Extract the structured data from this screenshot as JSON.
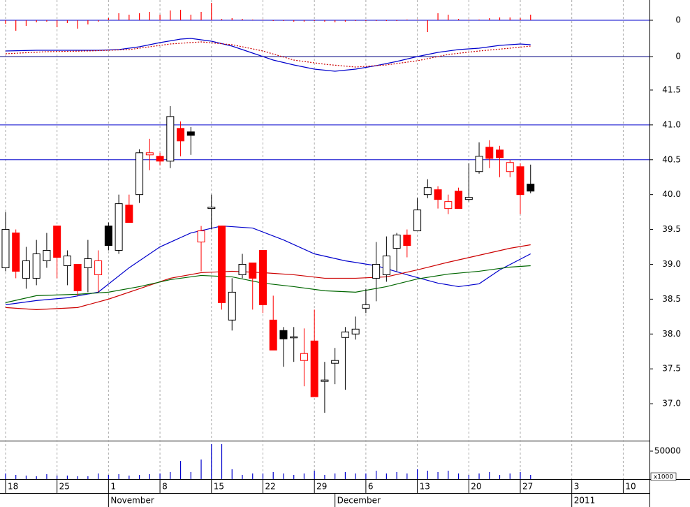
{
  "x_axis": {
    "xlim": [
      -0.54,
      62.55
    ],
    "xticks": [
      {
        "value": 0,
        "label": "18"
      },
      {
        "value": 5,
        "label": "25"
      },
      {
        "value": 10,
        "label": "1"
      },
      {
        "value": 15,
        "label": "8"
      },
      {
        "value": 20,
        "label": "15"
      },
      {
        "value": 25,
        "label": "22"
      },
      {
        "value": 30,
        "label": "29"
      },
      {
        "value": 35,
        "label": "6"
      },
      {
        "value": 40,
        "label": "13"
      },
      {
        "value": 45,
        "label": "20"
      },
      {
        "value": 50,
        "label": "27"
      },
      {
        "value": 55,
        "label": "3"
      },
      {
        "value": 60,
        "label": "10"
      }
    ],
    "month_ticks": [
      {
        "value": 10,
        "label": "November"
      },
      {
        "value": 32,
        "label": "December"
      },
      {
        "value": 55,
        "label": "2011"
      }
    ],
    "grid": true
  },
  "chart_data": [
    {
      "type": "bar",
      "color": "#ff0000",
      "ylim": [
        -26,
        29
      ],
      "yticks": [
        0
      ],
      "grid": true,
      "grid_color": "#0000cc",
      "x": [
        0,
        1,
        2,
        3,
        4,
        5,
        6,
        7,
        8,
        9,
        10,
        11,
        12,
        13,
        14,
        15,
        16,
        17,
        18,
        19,
        20,
        21,
        22,
        23,
        24,
        25,
        26,
        27,
        28,
        29,
        30,
        31,
        32,
        33,
        34,
        35,
        36,
        37,
        38,
        39,
        40,
        41,
        42,
        43,
        44,
        45,
        46,
        47,
        48,
        49,
        50,
        51
      ],
      "values": [
        -5,
        -15,
        -8,
        -3,
        -2,
        -10,
        -4,
        -12,
        -6,
        -2,
        3,
        10,
        8,
        10,
        12,
        8,
        14,
        15,
        8,
        12,
        25,
        2,
        3,
        2,
        1,
        1,
        -1,
        -1,
        -2,
        -2,
        -1,
        -2,
        -3,
        -2,
        -1,
        -1,
        -1,
        -1,
        -1,
        1,
        1,
        -17,
        10,
        8,
        2,
        1,
        1,
        3,
        4,
        4,
        3,
        8
      ]
    },
    {
      "type": "line",
      "ylim": [
        -29,
        46
      ],
      "yticks": [
        0
      ],
      "grid": true,
      "grid_color": "#000080",
      "series": [
        {
          "color": "#0000cc",
          "dashed": false,
          "x": [
            0,
            3,
            6,
            9,
            11,
            13,
            15,
            17,
            18,
            20,
            22,
            24,
            26,
            28,
            30,
            32,
            34,
            36,
            38,
            40,
            42,
            44,
            46,
            48,
            50,
            51
          ],
          "values": [
            8,
            9,
            9,
            9,
            10,
            14,
            20,
            25,
            26,
            22,
            15,
            5,
            -5,
            -12,
            -18,
            -21,
            -18,
            -13,
            -7,
            0,
            6,
            10,
            12,
            16,
            18,
            17
          ]
        },
        {
          "color": "#cc0000",
          "dashed": true,
          "x": [
            0,
            4,
            8,
            12,
            16,
            19,
            22,
            25,
            28,
            31,
            34,
            37,
            40,
            43,
            46,
            49,
            51
          ],
          "values": [
            4,
            7,
            8,
            10,
            18,
            21,
            17,
            8,
            -5,
            -11,
            -15,
            -12,
            -6,
            3,
            8,
            12,
            15
          ]
        }
      ]
    },
    {
      "type": "candlestick",
      "ylim": [
        36.48,
        41.79
      ],
      "yticks": [
        {
          "value": 37,
          "label": "37.0"
        },
        37.5,
        {
          "value": 38,
          "label": "38.0"
        },
        38.5,
        {
          "value": 39,
          "label": "39.0"
        },
        39.5,
        {
          "value": 40,
          "label": "40.0"
        },
        40.5,
        {
          "value": 41,
          "label": "41.0"
        },
        41.5
      ],
      "hlines": [
        41.0,
        40.5
      ],
      "hline_color": "#0000cc",
      "x": [
        0,
        1,
        2,
        3,
        4,
        5,
        6,
        7,
        8,
        9,
        10,
        11,
        12,
        13,
        14,
        15,
        16,
        17,
        18,
        19,
        20,
        21,
        22,
        23,
        24,
        25,
        26,
        27,
        28,
        29,
        30,
        31,
        32,
        33,
        34,
        35,
        36,
        37,
        38,
        39,
        40,
        41,
        42,
        43,
        44,
        45,
        46,
        47,
        48,
        49,
        50,
        51
      ],
      "open": [
        38.95,
        39.45,
        38.8,
        38.8,
        39.05,
        39.55,
        38.98,
        39.0,
        38.95,
        38.85,
        39.55,
        39.2,
        39.85,
        40.0,
        40.57,
        40.55,
        40.48,
        40.95,
        40.9,
        39.32,
        39.8,
        39.55,
        38.2,
        38.85,
        39.02,
        39.2,
        38.2,
        38.05,
        37.95,
        37.62,
        37.9,
        37.32,
        37.58,
        37.95,
        38.0,
        38.37,
        38.8,
        38.85,
        39.23,
        39.42,
        39.48,
        40.0,
        40.07,
        39.8,
        40.05,
        39.93,
        40.33,
        40.68,
        40.64,
        40.33,
        40.4,
        40.15
      ],
      "high": [
        39.75,
        39.5,
        39.25,
        39.35,
        39.45,
        39.55,
        39.2,
        39.0,
        39.35,
        39.2,
        39.6,
        40.0,
        40.0,
        40.65,
        40.8,
        40.6,
        41.27,
        41.05,
        40.97,
        39.55,
        40.0,
        39.55,
        38.8,
        39.15,
        39.02,
        39.2,
        38.55,
        38.1,
        38.1,
        38.08,
        38.35,
        37.6,
        37.8,
        38.1,
        38.25,
        38.65,
        39.32,
        39.4,
        39.45,
        39.5,
        39.95,
        40.22,
        40.12,
        40.0,
        40.1,
        40.45,
        40.75,
        40.78,
        40.7,
        40.5,
        40.45,
        40.43
      ],
      "low": [
        38.9,
        38.8,
        38.65,
        38.7,
        38.95,
        38.8,
        38.7,
        38.55,
        38.6,
        38.6,
        39.2,
        39.15,
        39.6,
        39.88,
        40.35,
        40.42,
        40.38,
        40.55,
        40.57,
        38.9,
        39.5,
        38.35,
        38.05,
        38.8,
        38.35,
        38.3,
        37.77,
        37.53,
        37.6,
        37.25,
        37.1,
        36.87,
        37.28,
        37.2,
        37.92,
        38.3,
        38.47,
        38.75,
        38.9,
        39.1,
        39.48,
        39.95,
        39.8,
        39.72,
        39.8,
        39.9,
        40.3,
        40.38,
        40.25,
        40.25,
        39.72,
        40.02
      ],
      "close": [
        39.5,
        38.9,
        39.05,
        39.15,
        39.2,
        39.1,
        39.12,
        38.62,
        39.08,
        39.05,
        39.27,
        39.87,
        39.6,
        40.6,
        40.6,
        40.48,
        41.12,
        40.77,
        40.85,
        39.48,
        39.82,
        38.45,
        38.6,
        39.0,
        38.8,
        38.42,
        37.77,
        37.93,
        37.96,
        37.72,
        37.1,
        37.34,
        37.62,
        38.03,
        38.07,
        38.42,
        39.0,
        39.12,
        39.42,
        39.27,
        39.78,
        40.1,
        39.93,
        39.9,
        39.8,
        39.96,
        40.55,
        40.52,
        40.53,
        40.46,
        40.0,
        40.05
      ],
      "colors": [
        "#000000",
        "#ff0000",
        "#000000",
        "#000000",
        "#000000",
        "#ff0000",
        "#000000",
        "#ff0000",
        "#000000",
        "#ff0000",
        "#000000",
        "#000000",
        "#ff0000",
        "#000000",
        "#ff0000",
        "#ff0000",
        "#000000",
        "#ff0000",
        "#000000",
        "#ff0000",
        "#000000",
        "#ff0000",
        "#000000",
        "#000000",
        "#ff0000",
        "#ff0000",
        "#ff0000",
        "#000000",
        "#000000",
        "#ff0000",
        "#ff0000",
        "#000000",
        "#000000",
        "#000000",
        "#000000",
        "#000000",
        "#000000",
        "#000000",
        "#000000",
        "#ff0000",
        "#000000",
        "#000000",
        "#ff0000",
        "#ff0000",
        "#ff0000",
        "#000000",
        "#000000",
        "#ff0000",
        "#ff0000",
        "#ff0000",
        "#ff0000",
        "#000000"
      ],
      "series": [
        {
          "color": "#0000cc",
          "x": [
            0,
            3,
            6,
            9,
            12,
            15,
            18,
            21,
            24,
            27,
            30,
            33,
            36,
            39,
            42,
            44,
            46,
            48,
            51
          ],
          "values": [
            38.42,
            38.48,
            38.52,
            38.6,
            38.95,
            39.25,
            39.45,
            39.55,
            39.52,
            39.35,
            39.15,
            39.05,
            38.98,
            38.85,
            38.73,
            38.68,
            38.72,
            38.92,
            39.15
          ]
        },
        {
          "color": "#cc0000",
          "x": [
            0,
            3,
            7,
            10,
            13,
            16,
            19,
            22,
            25,
            28,
            31,
            34,
            37,
            40,
            43,
            46,
            49,
            51
          ],
          "values": [
            38.38,
            38.35,
            38.38,
            38.5,
            38.65,
            38.8,
            38.88,
            38.9,
            38.88,
            38.85,
            38.8,
            38.8,
            38.82,
            38.92,
            39.03,
            39.13,
            39.23,
            39.28
          ]
        },
        {
          "color": "#006600",
          "x": [
            0,
            3,
            7,
            10,
            13,
            16,
            19,
            22,
            25,
            28,
            31,
            34,
            37,
            40,
            43,
            46,
            49,
            51
          ],
          "values": [
            38.45,
            38.55,
            38.57,
            38.6,
            38.68,
            38.78,
            38.84,
            38.82,
            38.73,
            38.68,
            38.62,
            38.6,
            38.68,
            38.79,
            38.86,
            38.9,
            38.96,
            38.98
          ]
        }
      ]
    },
    {
      "type": "bar",
      "color": "#0000cc",
      "ylim": [
        0,
        67500
      ],
      "yticks": [
        50000
      ],
      "y_unit": "x1000",
      "x": [
        0,
        1,
        2,
        3,
        4,
        5,
        6,
        7,
        8,
        9,
        10,
        11,
        12,
        13,
        14,
        15,
        16,
        17,
        18,
        19,
        20,
        21,
        22,
        23,
        24,
        25,
        26,
        27,
        28,
        29,
        30,
        31,
        32,
        33,
        34,
        35,
        36,
        37,
        38,
        39,
        40,
        41,
        42,
        43,
        44,
        45,
        46,
        47,
        48,
        49,
        50,
        51
      ],
      "values": [
        10000,
        7500,
        6250,
        5000,
        8750,
        6250,
        6250,
        5000,
        5000,
        10000,
        7500,
        8750,
        6250,
        7500,
        8750,
        10000,
        12500,
        32500,
        12500,
        35000,
        62500,
        62500,
        17500,
        7500,
        10000,
        10000,
        12500,
        10000,
        7500,
        10000,
        15000,
        7500,
        10000,
        12500,
        10000,
        10000,
        15000,
        10000,
        12500,
        10000,
        17500,
        15000,
        12500,
        15000,
        10000,
        7500,
        10000,
        12500,
        7500,
        10000,
        12500,
        7500
      ]
    }
  ]
}
